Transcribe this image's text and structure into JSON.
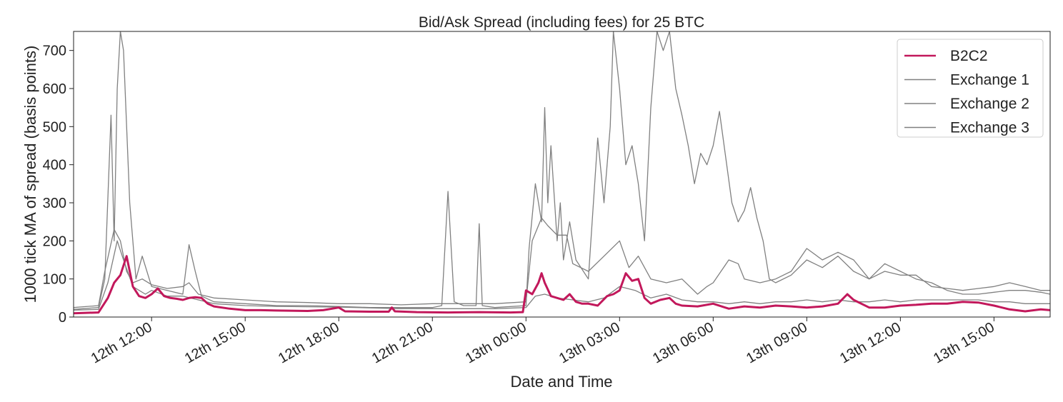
{
  "chart_data": {
    "type": "line",
    "title": "Bid/Ask Spread (including fees) for 25 BTC",
    "xlabel": "Date and Time",
    "ylabel": "1000 tick MA of spread (basis points)",
    "xlim": [
      "12th 10:00",
      "13th 17:00"
    ],
    "ylim": [
      0,
      750
    ],
    "grid": false,
    "legend_position": "top-right",
    "x_ticks": [
      {
        "hour": 12,
        "label": "12th 12:00"
      },
      {
        "hour": 15,
        "label": "12th 15:00"
      },
      {
        "hour": 18,
        "label": "12th 18:00"
      },
      {
        "hour": 21,
        "label": "12th 21:00"
      },
      {
        "hour": 24,
        "label": "13th 00:00"
      },
      {
        "hour": 27,
        "label": "13th 03:00"
      },
      {
        "hour": 30,
        "label": "13th 06:00"
      },
      {
        "hour": 33,
        "label": "13th 09:00"
      },
      {
        "hour": 36,
        "label": "13th 12:00"
      },
      {
        "hour": 39,
        "label": "13th 15:00"
      }
    ],
    "y_ticks": [
      0,
      100,
      200,
      300,
      400,
      500,
      600,
      700
    ],
    "series": [
      {
        "name": "B2C2",
        "color": "#c2185b",
        "points": [
          [
            9.5,
            10
          ],
          [
            10.3,
            12
          ],
          [
            10.6,
            50
          ],
          [
            10.8,
            90
          ],
          [
            11.0,
            110
          ],
          [
            11.2,
            160
          ],
          [
            11.4,
            80
          ],
          [
            11.6,
            55
          ],
          [
            11.8,
            50
          ],
          [
            12.0,
            60
          ],
          [
            12.2,
            75
          ],
          [
            12.4,
            55
          ],
          [
            12.6,
            50
          ],
          [
            12.8,
            48
          ],
          [
            13.0,
            45
          ],
          [
            13.2,
            50
          ],
          [
            13.4,
            52
          ],
          [
            13.6,
            50
          ],
          [
            13.8,
            35
          ],
          [
            14.0,
            28
          ],
          [
            14.5,
            22
          ],
          [
            15.0,
            18
          ],
          [
            15.5,
            18
          ],
          [
            16.0,
            17
          ],
          [
            17.0,
            16
          ],
          [
            17.5,
            18
          ],
          [
            18.0,
            25
          ],
          [
            18.2,
            15
          ],
          [
            19.0,
            14
          ],
          [
            19.6,
            14
          ],
          [
            19.7,
            25
          ],
          [
            19.8,
            15
          ],
          [
            20.5,
            13
          ],
          [
            21.5,
            12
          ],
          [
            22.5,
            13
          ],
          [
            23.5,
            12
          ],
          [
            23.9,
            13
          ],
          [
            24.0,
            70
          ],
          [
            24.2,
            60
          ],
          [
            24.4,
            90
          ],
          [
            24.5,
            115
          ],
          [
            24.6,
            90
          ],
          [
            24.8,
            55
          ],
          [
            25.0,
            50
          ],
          [
            25.2,
            45
          ],
          [
            25.4,
            60
          ],
          [
            25.6,
            40
          ],
          [
            25.8,
            35
          ],
          [
            26.0,
            35
          ],
          [
            26.3,
            30
          ],
          [
            26.6,
            55
          ],
          [
            26.8,
            60
          ],
          [
            27.0,
            70
          ],
          [
            27.2,
            115
          ],
          [
            27.4,
            95
          ],
          [
            27.6,
            100
          ],
          [
            27.8,
            50
          ],
          [
            28.0,
            35
          ],
          [
            28.3,
            45
          ],
          [
            28.6,
            50
          ],
          [
            28.8,
            35
          ],
          [
            29.0,
            30
          ],
          [
            29.5,
            28
          ],
          [
            30.0,
            35
          ],
          [
            30.5,
            22
          ],
          [
            31.0,
            28
          ],
          [
            31.5,
            25
          ],
          [
            32.0,
            30
          ],
          [
            32.5,
            28
          ],
          [
            33.0,
            25
          ],
          [
            33.5,
            28
          ],
          [
            34.0,
            35
          ],
          [
            34.3,
            60
          ],
          [
            34.5,
            45
          ],
          [
            35.0,
            25
          ],
          [
            35.5,
            25
          ],
          [
            36.0,
            30
          ],
          [
            36.5,
            32
          ],
          [
            37.0,
            35
          ],
          [
            37.5,
            35
          ],
          [
            38.0,
            40
          ],
          [
            38.5,
            38
          ],
          [
            39.0,
            30
          ],
          [
            39.5,
            20
          ],
          [
            40.0,
            15
          ],
          [
            40.5,
            20
          ],
          [
            40.8,
            18
          ]
        ]
      },
      {
        "name": "Exchange 1",
        "color": "#808080",
        "points": [
          [
            9.5,
            20
          ],
          [
            10.3,
            25
          ],
          [
            10.5,
            100
          ],
          [
            10.7,
            530
          ],
          [
            10.8,
            200
          ],
          [
            10.9,
            600
          ],
          [
            11.0,
            750
          ],
          [
            11.1,
            700
          ],
          [
            11.3,
            300
          ],
          [
            11.5,
            100
          ],
          [
            11.7,
            160
          ],
          [
            12.0,
            80
          ],
          [
            12.5,
            70
          ],
          [
            13.0,
            60
          ],
          [
            13.2,
            190
          ],
          [
            13.4,
            120
          ],
          [
            13.6,
            55
          ],
          [
            14.0,
            40
          ],
          [
            15.0,
            35
          ],
          [
            16.0,
            30
          ],
          [
            17.0,
            30
          ],
          [
            18.0,
            28
          ],
          [
            19.0,
            25
          ],
          [
            20.0,
            25
          ],
          [
            21.0,
            25
          ],
          [
            21.3,
            30
          ],
          [
            21.5,
            330
          ],
          [
            21.7,
            40
          ],
          [
            22.0,
            30
          ],
          [
            22.4,
            30
          ],
          [
            22.5,
            245
          ],
          [
            22.6,
            30
          ],
          [
            23.0,
            25
          ],
          [
            24.0,
            30
          ],
          [
            24.1,
            180
          ],
          [
            24.3,
            350
          ],
          [
            24.5,
            250
          ],
          [
            24.6,
            550
          ],
          [
            24.7,
            300
          ],
          [
            24.8,
            450
          ],
          [
            25.0,
            200
          ],
          [
            25.1,
            300
          ],
          [
            25.2,
            150
          ],
          [
            25.4,
            250
          ],
          [
            25.6,
            150
          ],
          [
            26.0,
            100
          ],
          [
            26.3,
            470
          ],
          [
            26.5,
            300
          ],
          [
            26.7,
            500
          ],
          [
            26.8,
            750
          ],
          [
            27.0,
            600
          ],
          [
            27.2,
            400
          ],
          [
            27.4,
            450
          ],
          [
            27.6,
            350
          ],
          [
            27.8,
            200
          ],
          [
            28.0,
            550
          ],
          [
            28.2,
            750
          ],
          [
            28.4,
            700
          ],
          [
            28.6,
            750
          ],
          [
            28.8,
            600
          ],
          [
            29.0,
            530
          ],
          [
            29.2,
            450
          ],
          [
            29.4,
            350
          ],
          [
            29.6,
            430
          ],
          [
            29.8,
            400
          ],
          [
            30.0,
            450
          ],
          [
            30.2,
            540
          ],
          [
            30.4,
            420
          ],
          [
            30.6,
            300
          ],
          [
            30.8,
            250
          ],
          [
            31.0,
            280
          ],
          [
            31.2,
            340
          ],
          [
            31.4,
            260
          ],
          [
            31.6,
            200
          ],
          [
            31.8,
            100
          ],
          [
            32.0,
            90
          ],
          [
            32.5,
            110
          ],
          [
            33.0,
            150
          ],
          [
            33.5,
            130
          ],
          [
            34.0,
            160
          ],
          [
            34.5,
            120
          ],
          [
            35.0,
            100
          ],
          [
            35.5,
            120
          ],
          [
            36.0,
            110
          ],
          [
            36.5,
            110
          ],
          [
            37.0,
            80
          ],
          [
            37.5,
            75
          ],
          [
            38.0,
            70
          ],
          [
            38.5,
            75
          ],
          [
            39.0,
            80
          ],
          [
            39.5,
            90
          ],
          [
            40.0,
            80
          ],
          [
            40.5,
            70
          ],
          [
            40.8,
            70
          ]
        ]
      },
      {
        "name": "Exchange 2",
        "color": "#808080",
        "points": [
          [
            9.5,
            25
          ],
          [
            10.3,
            30
          ],
          [
            10.5,
            120
          ],
          [
            10.8,
            230
          ],
          [
            11.0,
            200
          ],
          [
            11.2,
            120
          ],
          [
            11.4,
            90
          ],
          [
            11.7,
            100
          ],
          [
            12.0,
            85
          ],
          [
            12.5,
            75
          ],
          [
            13.0,
            80
          ],
          [
            13.2,
            90
          ],
          [
            13.5,
            60
          ],
          [
            14.0,
            50
          ],
          [
            15.0,
            45
          ],
          [
            16.0,
            40
          ],
          [
            17.0,
            38
          ],
          [
            18.0,
            35
          ],
          [
            19.0,
            35
          ],
          [
            20.0,
            32
          ],
          [
            21.0,
            35
          ],
          [
            22.0,
            35
          ],
          [
            23.0,
            35
          ],
          [
            24.0,
            40
          ],
          [
            24.2,
            200
          ],
          [
            24.5,
            260
          ],
          [
            24.7,
            240
          ],
          [
            25.0,
            215
          ],
          [
            25.3,
            215
          ],
          [
            25.5,
            140
          ],
          [
            26.0,
            120
          ],
          [
            26.5,
            160
          ],
          [
            27.0,
            200
          ],
          [
            27.3,
            130
          ],
          [
            27.6,
            160
          ],
          [
            28.0,
            100
          ],
          [
            28.5,
            90
          ],
          [
            29.0,
            100
          ],
          [
            29.5,
            60
          ],
          [
            29.8,
            80
          ],
          [
            30.0,
            90
          ],
          [
            30.5,
            150
          ],
          [
            30.8,
            140
          ],
          [
            31.0,
            100
          ],
          [
            31.5,
            90
          ],
          [
            32.0,
            100
          ],
          [
            32.5,
            120
          ],
          [
            33.0,
            180
          ],
          [
            33.5,
            150
          ],
          [
            34.0,
            170
          ],
          [
            34.5,
            150
          ],
          [
            35.0,
            100
          ],
          [
            35.5,
            140
          ],
          [
            36.0,
            120
          ],
          [
            36.5,
            100
          ],
          [
            37.0,
            90
          ],
          [
            37.5,
            70
          ],
          [
            38.0,
            60
          ],
          [
            38.5,
            60
          ],
          [
            39.0,
            65
          ],
          [
            39.5,
            70
          ],
          [
            40.0,
            70
          ],
          [
            40.5,
            65
          ],
          [
            40.8,
            60
          ]
        ]
      },
      {
        "name": "Exchange 3",
        "color": "#808080",
        "points": [
          [
            9.5,
            18
          ],
          [
            10.3,
            20
          ],
          [
            10.6,
            90
          ],
          [
            10.9,
            200
          ],
          [
            11.1,
            150
          ],
          [
            11.4,
            80
          ],
          [
            11.8,
            60
          ],
          [
            12.0,
            70
          ],
          [
            12.5,
            55
          ],
          [
            13.0,
            55
          ],
          [
            13.5,
            45
          ],
          [
            14.0,
            35
          ],
          [
            15.0,
            30
          ],
          [
            16.0,
            28
          ],
          [
            17.0,
            27
          ],
          [
            18.0,
            26
          ],
          [
            19.0,
            24
          ],
          [
            20.0,
            22
          ],
          [
            21.0,
            22
          ],
          [
            22.0,
            22
          ],
          [
            23.0,
            22
          ],
          [
            24.0,
            25
          ],
          [
            24.3,
            55
          ],
          [
            24.6,
            60
          ],
          [
            25.0,
            50
          ],
          [
            25.5,
            45
          ],
          [
            26.0,
            40
          ],
          [
            26.5,
            50
          ],
          [
            27.0,
            80
          ],
          [
            27.5,
            70
          ],
          [
            28.0,
            50
          ],
          [
            28.5,
            60
          ],
          [
            29.0,
            45
          ],
          [
            29.5,
            40
          ],
          [
            30.0,
            40
          ],
          [
            30.5,
            35
          ],
          [
            31.0,
            40
          ],
          [
            31.5,
            35
          ],
          [
            32.0,
            40
          ],
          [
            32.5,
            40
          ],
          [
            33.0,
            45
          ],
          [
            33.5,
            40
          ],
          [
            34.0,
            45
          ],
          [
            34.5,
            40
          ],
          [
            35.0,
            40
          ],
          [
            35.5,
            45
          ],
          [
            36.0,
            40
          ],
          [
            36.5,
            45
          ],
          [
            37.0,
            45
          ],
          [
            37.5,
            45
          ],
          [
            38.0,
            45
          ],
          [
            38.5,
            45
          ],
          [
            39.0,
            40
          ],
          [
            39.5,
            40
          ],
          [
            40.0,
            35
          ],
          [
            40.5,
            35
          ],
          [
            40.8,
            35
          ]
        ]
      }
    ]
  }
}
